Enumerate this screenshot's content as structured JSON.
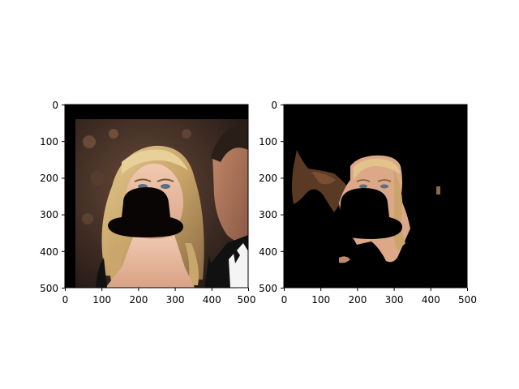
{
  "figure": {
    "panels": [
      {
        "name": "original-image-with-hat-mask",
        "description_color": "#000000",
        "xticks": [
          "0",
          "100",
          "200",
          "300",
          "400",
          "500"
        ],
        "yticks": [
          "0",
          "100",
          "200",
          "300",
          "400",
          "500"
        ]
      },
      {
        "name": "segmented-face-image",
        "xticks": [
          "0",
          "100",
          "200",
          "300",
          "400",
          "500"
        ],
        "yticks": [
          "0",
          "100",
          "200",
          "300",
          "400",
          "500"
        ]
      }
    ],
    "colors": {
      "background": "#ffffff",
      "mask": "#0a0505",
      "skin": "#e6b49a",
      "hair": "#d2b478",
      "backdrop": "#3c2c24"
    }
  }
}
